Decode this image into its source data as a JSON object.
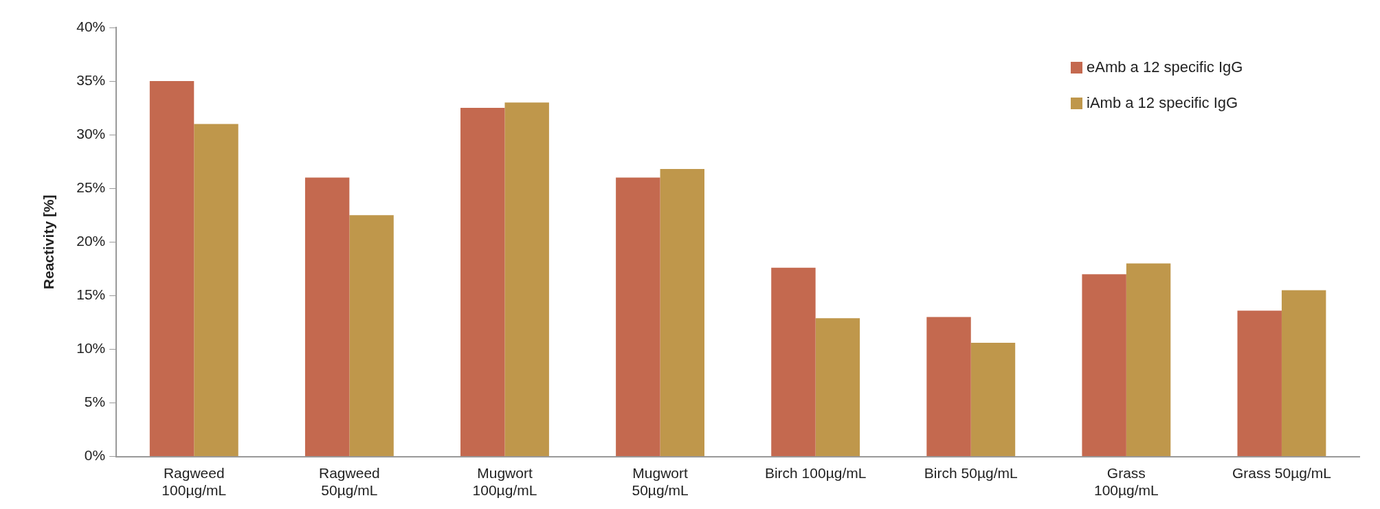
{
  "chart_data": {
    "type": "bar",
    "ylabel": "Reactivity [%]",
    "categories": [
      "Ragweed\n100µg/mL",
      "Ragweed\n50µg/mL",
      "Mugwort\n100µg/mL",
      "Mugwort\n50µg/mL",
      "Birch 100µg/mL",
      "Birch 50µg/mL",
      "Grass\n100µg/mL",
      "Grass 50µg/mL"
    ],
    "series": [
      {
        "name": "eAmb a 12 specific IgG",
        "color": "#c4694f",
        "values": [
          35,
          26,
          32.5,
          26,
          17.6,
          13,
          17,
          13.6
        ]
      },
      {
        "name": "iAmb a 12 specific IgG",
        "color": "#bf974b",
        "values": [
          31,
          22.5,
          33,
          26.8,
          12.9,
          10.6,
          18,
          15.5
        ]
      }
    ],
    "ylim": [
      0,
      40
    ],
    "yticks": [
      {
        "value": 0,
        "label": "0%"
      },
      {
        "value": 5,
        "label": "5%"
      },
      {
        "value": 10,
        "label": "10%"
      },
      {
        "value": 15,
        "label": "15%"
      },
      {
        "value": 20,
        "label": "20%"
      },
      {
        "value": 25,
        "label": "25%"
      },
      {
        "value": 30,
        "label": "30%"
      },
      {
        "value": 35,
        "label": "35%"
      },
      {
        "value": 40,
        "label": "40%"
      }
    ],
    "grid": false,
    "legend": "top right"
  }
}
